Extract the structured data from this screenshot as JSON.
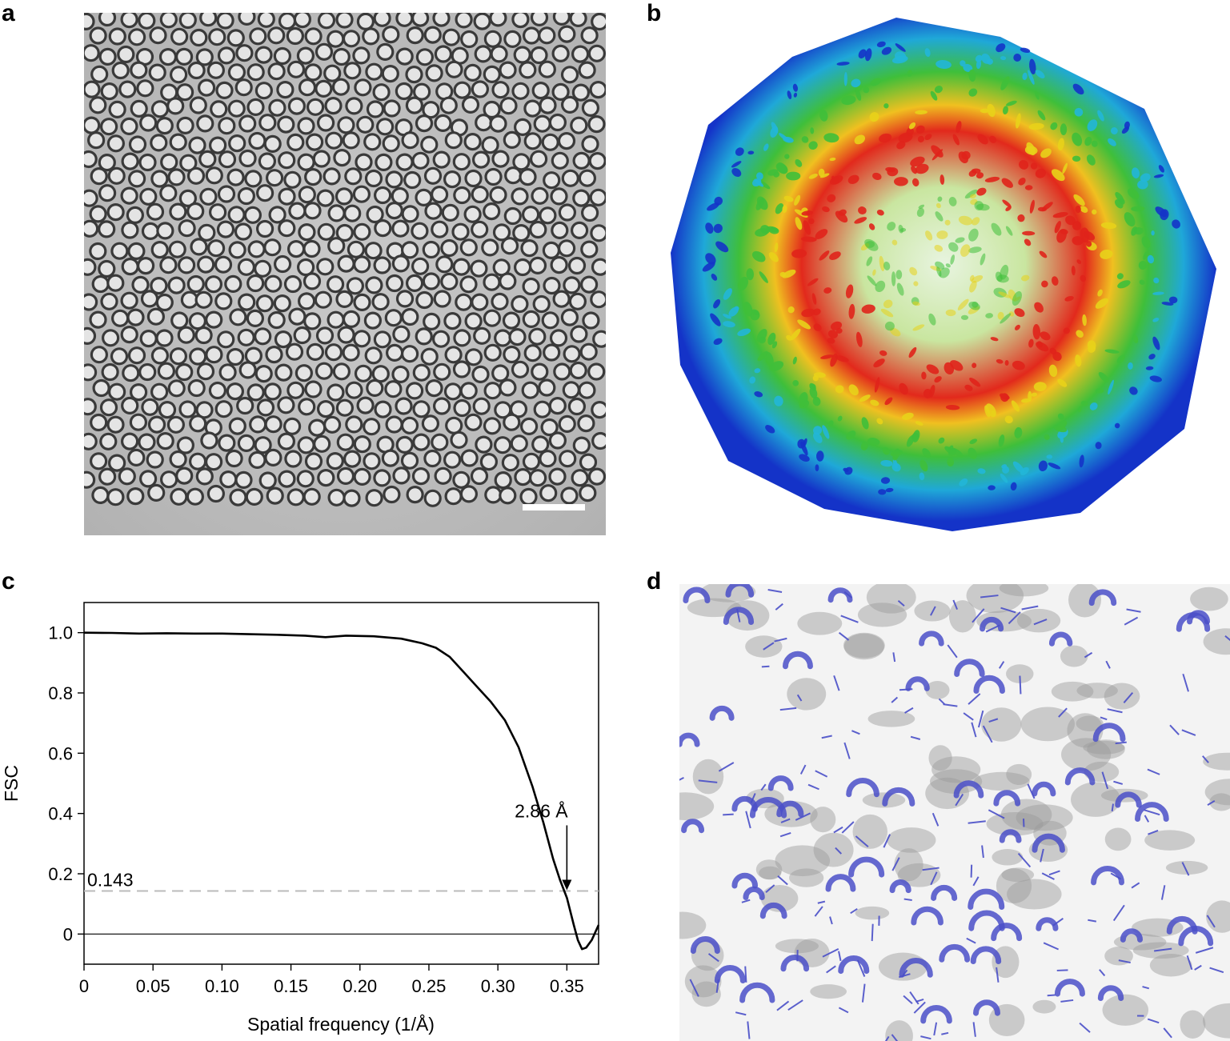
{
  "panels": {
    "a": {
      "label": "a"
    },
    "b": {
      "label": "b"
    },
    "c": {
      "label": "c"
    },
    "d": {
      "label": "d"
    }
  },
  "colors": {
    "micrograph_bg": "#bdbdbd",
    "particle_dark": "#3a3a3a",
    "scale_bar": "#ffffff",
    "map_red": "#e0241b",
    "map_yellow": "#e8d21a",
    "map_green": "#3fbf3a",
    "map_cyan": "#22b6d8",
    "map_blue": "#1433c8",
    "ribbon": "#4a4fc8",
    "density": "#9a9a9a",
    "threshold_line": "#bbbbbb"
  },
  "chart_data": {
    "type": "line",
    "xlabel": "Spatial frequency (1/Å)",
    "ylabel": "FSC",
    "xlim": [
      0,
      0.373
    ],
    "ylim": [
      -0.1,
      1.1
    ],
    "xticks": [
      "0",
      "0.05",
      "0.10",
      "0.15",
      "0.20",
      "0.25",
      "0.30",
      "0.35"
    ],
    "xtick_values": [
      0,
      0.05,
      0.1,
      0.15,
      0.2,
      0.25,
      0.3,
      0.35
    ],
    "yticks": [
      "0",
      "0.2",
      "0.4",
      "0.6",
      "0.8",
      "1.0"
    ],
    "ytick_values": [
      0,
      0.2,
      0.4,
      0.6,
      0.8,
      1.0
    ],
    "series": [
      {
        "x": [
          0,
          0.02,
          0.04,
          0.06,
          0.08,
          0.1,
          0.12,
          0.14,
          0.16,
          0.175,
          0.19,
          0.21,
          0.23,
          0.245,
          0.255,
          0.265,
          0.275,
          0.285,
          0.295,
          0.305,
          0.315,
          0.325,
          0.333,
          0.34,
          0.345,
          0.35,
          0.355,
          0.358,
          0.361,
          0.364,
          0.368,
          0.373
        ],
        "y": [
          1.0,
          0.999,
          0.997,
          0.998,
          0.997,
          0.997,
          0.995,
          0.993,
          0.99,
          0.985,
          0.99,
          0.988,
          0.98,
          0.965,
          0.95,
          0.92,
          0.87,
          0.82,
          0.77,
          0.71,
          0.62,
          0.49,
          0.37,
          0.25,
          0.18,
          0.12,
          0.03,
          -0.02,
          -0.05,
          -0.045,
          -0.02,
          0.03
        ]
      }
    ],
    "threshold": {
      "value": 0.143,
      "label": "0.143"
    },
    "annotation": {
      "label": "2.86 Å",
      "x": 0.35,
      "y": 0.143
    }
  }
}
